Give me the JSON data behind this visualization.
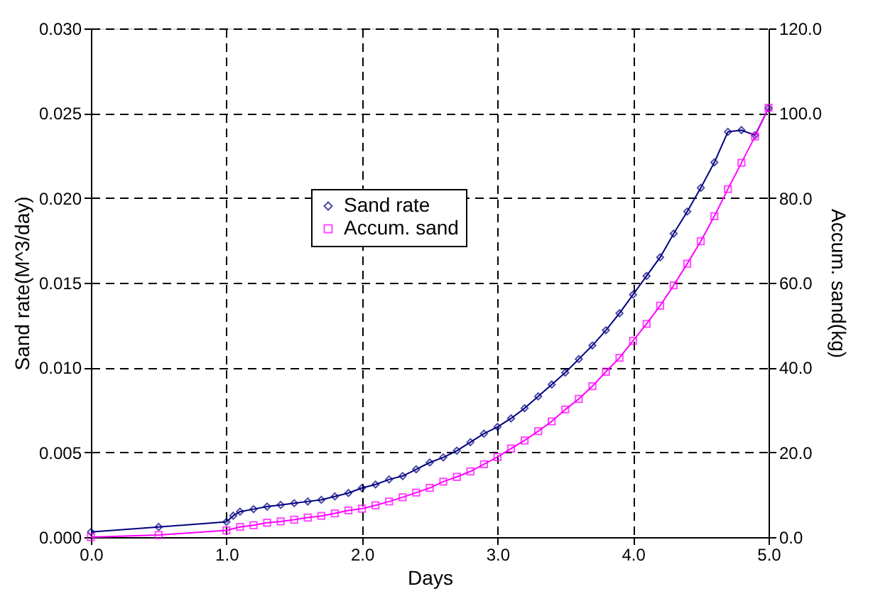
{
  "chart_data": {
    "type": "line",
    "xlabel": "Days",
    "ylabel": "Sand rate(M^3/day)",
    "y2label": "Accum. sand(kg)",
    "xlim": [
      0,
      5
    ],
    "xticks": [
      {
        "value": 0,
        "label": "0.0"
      },
      {
        "value": 1,
        "label": "1.0"
      },
      {
        "value": 2,
        "label": "2.0"
      },
      {
        "value": 3,
        "label": "3.0"
      },
      {
        "value": 4,
        "label": "4.0"
      },
      {
        "value": 5,
        "label": "5.0"
      }
    ],
    "ylim": [
      0,
      0.03
    ],
    "yticks": [
      {
        "value": 0,
        "label": "0.000"
      },
      {
        "value": 0.005,
        "label": "0.005"
      },
      {
        "value": 0.01,
        "label": "0.010"
      },
      {
        "value": 0.015,
        "label": "0.015"
      },
      {
        "value": 0.02,
        "label": "0.020"
      },
      {
        "value": 0.025,
        "label": "0.025"
      },
      {
        "value": 0.03,
        "label": "0.030"
      }
    ],
    "y2lim": [
      0,
      120
    ],
    "y2ticks": [
      {
        "value": 0,
        "label": "0.0"
      },
      {
        "value": 20,
        "label": "20.0"
      },
      {
        "value": 40,
        "label": "40.0"
      },
      {
        "value": 60,
        "label": "60.0"
      },
      {
        "value": 80,
        "label": "80.0"
      },
      {
        "value": 100,
        "label": "100.0"
      },
      {
        "value": 120,
        "label": "120.0"
      }
    ],
    "grid": true,
    "legend": "top",
    "line_style": "solid",
    "series": [
      {
        "name": "Sand rate",
        "color": "#000080",
        "marker": "diamond",
        "x": [
          0,
          0.5,
          1.0,
          1.05,
          1.1,
          1.2,
          1.3,
          1.4,
          1.5,
          1.6,
          1.7,
          1.8,
          1.9,
          2.0,
          2.1,
          2.2,
          2.3,
          2.4,
          2.5,
          2.6,
          2.7,
          2.8,
          2.9,
          3.0,
          3.1,
          3.2,
          3.3,
          3.4,
          3.5,
          3.6,
          3.7,
          3.8,
          3.9,
          4.0,
          4.1,
          4.2,
          4.3,
          4.4,
          4.5,
          4.6,
          4.7,
          4.8,
          4.9,
          5.0
        ],
        "values": [
          0.0003,
          0.0006,
          0.0009,
          0.00126,
          0.0015,
          0.00165,
          0.0018,
          0.0019,
          0.002,
          0.0021,
          0.0022,
          0.0024,
          0.0026,
          0.0029,
          0.0031,
          0.0034,
          0.0036,
          0.004,
          0.0044,
          0.0047,
          0.0051,
          0.0056,
          0.0061,
          0.0065,
          0.007,
          0.0076,
          0.0083,
          0.009,
          0.0097,
          0.0105,
          0.0113,
          0.0122,
          0.0132,
          0.0143,
          0.0154,
          0.0165,
          0.0179,
          0.0192,
          0.0206,
          0.0221,
          0.0239,
          0.024,
          0.0237,
          0.0253
        ]
      },
      {
        "name": "Accum. sand",
        "color": "#ff00ff",
        "marker": "square",
        "axis": "y2",
        "x": [
          0,
          0.5,
          1.0,
          1.1,
          1.2,
          1.3,
          1.4,
          1.5,
          1.6,
          1.7,
          1.8,
          1.9,
          2.0,
          2.1,
          2.2,
          2.3,
          2.4,
          2.5,
          2.6,
          2.7,
          2.8,
          2.9,
          3.0,
          3.1,
          3.2,
          3.3,
          3.4,
          3.5,
          3.6,
          3.7,
          3.8,
          3.9,
          4.0,
          4.1,
          4.2,
          4.3,
          4.4,
          4.5,
          4.6,
          4.7,
          4.8,
          4.9,
          5.0
        ],
        "values": [
          0,
          0.5,
          1.6,
          2.4,
          2.8,
          3.4,
          3.7,
          4.1,
          4.6,
          5.0,
          5.6,
          6.3,
          6.7,
          7.5,
          8.4,
          9.4,
          10.5,
          11.6,
          13.1,
          14.2,
          15.5,
          17.2,
          18.9,
          20.9,
          22.8,
          25.0,
          27.3,
          30.1,
          32.6,
          35.6,
          39.0,
          42.3,
          46.3,
          50.3,
          54.6,
          59.4,
          64.5,
          69.8,
          75.7,
          82.1,
          88.3,
          94.5,
          101.3
        ]
      }
    ]
  }
}
